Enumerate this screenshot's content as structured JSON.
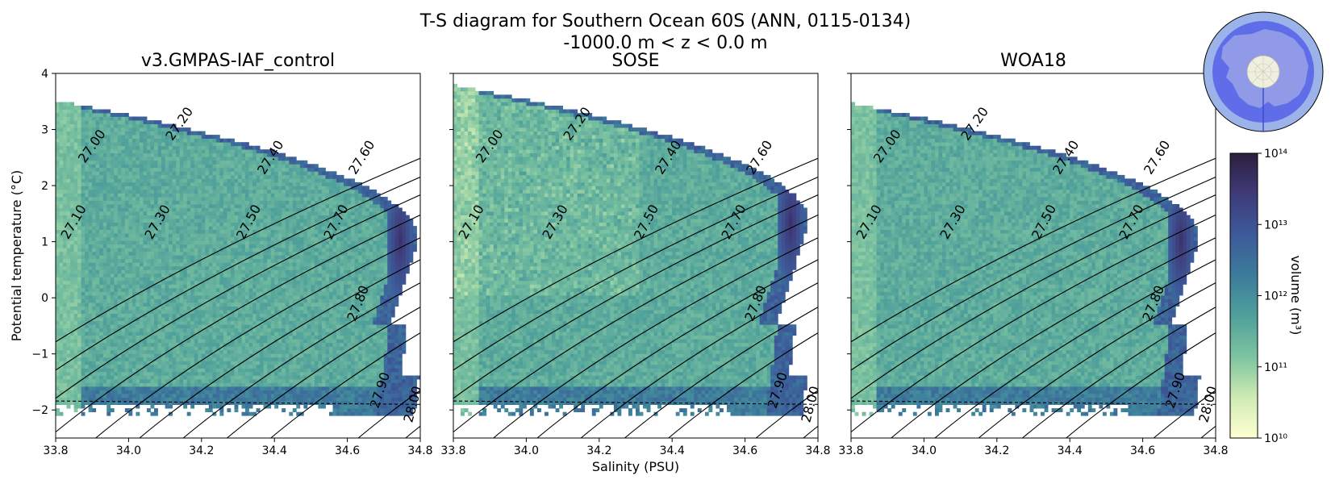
{
  "chart_data": {
    "type": "heatmap",
    "title_line1": "T-S diagram for Southern Ocean 60S (ANN, 0115-0134)",
    "title_line2": "-1000.0 m < z < 0.0 m",
    "xlabel": "Salinity (PSU)",
    "ylabel": "Potential temperature (°C)",
    "xlim": [
      33.8,
      34.8
    ],
    "ylim": [
      -2.5,
      4.0
    ],
    "x_ticks": [
      33.8,
      34.0,
      34.2,
      34.4,
      34.6,
      34.8
    ],
    "x_tick_labels": [
      "33.8",
      "34.0",
      "34.2",
      "34.4",
      "34.6",
      "34.8"
    ],
    "y_ticks": [
      4,
      3,
      2,
      1,
      0,
      -1,
      -2
    ],
    "y_tick_labels": [
      "4",
      "3",
      "2",
      "1",
      "0",
      "−1",
      "−2"
    ],
    "freezing_line": {
      "temp_at_xmin": -1.84,
      "temp_at_xmax": -1.9,
      "style": "dashed"
    },
    "density_contours": [
      {
        "sigma": 27.0,
        "label": "27.00",
        "s_at_bottom": 33.43,
        "label_s": 33.9,
        "label_t": 2.7,
        "rotation": -55
      },
      {
        "sigma": 27.1,
        "label": "27.10",
        "s_at_bottom": 33.55,
        "label_s": 33.85,
        "label_t": 1.35,
        "rotation": -60
      },
      {
        "sigma": 27.2,
        "label": "27.20",
        "s_at_bottom": 33.66,
        "label_s": 34.14,
        "label_t": 3.1,
        "rotation": -55
      },
      {
        "sigma": 27.3,
        "label": "27.30",
        "s_at_bottom": 33.78,
        "label_s": 34.08,
        "label_t": 1.35,
        "rotation": -60
      },
      {
        "sigma": 27.4,
        "label": "27.40",
        "s_at_bottom": 33.91,
        "label_s": 34.39,
        "label_t": 2.5,
        "rotation": -58
      },
      {
        "sigma": 27.5,
        "label": "27.50",
        "s_at_bottom": 34.03,
        "label_s": 34.33,
        "label_t": 1.35,
        "rotation": -62
      },
      {
        "sigma": 27.6,
        "label": "27.60",
        "s_at_bottom": 34.15,
        "label_s": 34.64,
        "label_t": 2.5,
        "rotation": -58
      },
      {
        "sigma": 27.7,
        "label": "27.70",
        "s_at_bottom": 34.27,
        "label_s": 34.57,
        "label_t": 1.35,
        "rotation": -62
      },
      {
        "sigma": 27.8,
        "label": "27.80",
        "s_at_bottom": 34.39,
        "label_s": 34.63,
        "label_t": -0.1,
        "rotation": -68
      },
      {
        "sigma": 27.9,
        "label": "27.90",
        "s_at_bottom": 34.63,
        "label_s": 34.69,
        "label_t": -1.65,
        "rotation": -72
      },
      {
        "sigma": 28.0,
        "label": "28.00",
        "s_at_bottom": 34.76,
        "label_s": 34.78,
        "label_t": -1.9,
        "rotation": -75
      }
    ],
    "panels": [
      {
        "title": "v3.GMPAS-IAF_control",
        "has_ylabel": true,
        "density_core": {
          "s": 34.74,
          "t": 1.0
        }
      },
      {
        "title": "SOSE",
        "has_ylabel": false,
        "density_core": {
          "s": 34.72,
          "t": 1.3
        }
      },
      {
        "title": "WOA18",
        "has_ylabel": false,
        "density_core": {
          "s": 34.7,
          "t": 1.0
        }
      }
    ],
    "colorbar": {
      "label": "volume (m³)",
      "scale": "log",
      "min_exp": 10,
      "max_exp": 14,
      "tick_labels": [
        "10¹⁰",
        "10¹¹",
        "10¹²",
        "10¹³",
        "10¹⁴"
      ],
      "colors": [
        "#ffffd1",
        "#cfebb3",
        "#7cc3a0",
        "#4fa09b",
        "#3c7c9b",
        "#3d5a9a",
        "#3f3b79",
        "#2c1e3d"
      ]
    }
  },
  "inset_map": {
    "ocean_color": "#5f6ee8",
    "ring_color": "#9bb3e8",
    "land_color": "#9aa2e6"
  }
}
